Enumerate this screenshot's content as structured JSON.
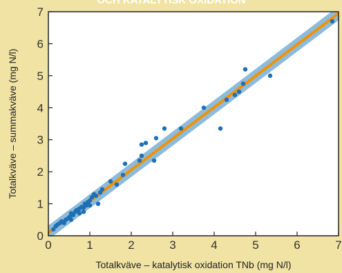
{
  "chart_data": {
    "type": "scatter",
    "title_fragment": "OCH KATALYTISK OXIDATION",
    "xlabel": "Totalkväve – katalytisk oxidation TNb (mg N/l)",
    "ylabel": "Totalkväve – summakväve (mg N/l)",
    "xlim": [
      0,
      7
    ],
    "ylim": [
      0,
      7
    ],
    "xticks": [
      "0",
      "1",
      "2",
      "3",
      "4",
      "5",
      "6",
      "7"
    ],
    "yticks": [
      "0",
      "1",
      "2",
      "3",
      "4",
      "5",
      "6",
      "7"
    ],
    "grid": false,
    "regression_line": {
      "x": [
        0,
        7
      ],
      "y": [
        0.1,
        6.95
      ]
    },
    "confidence_band_halfwidth": 0.22,
    "points": [
      [
        0.12,
        0.2
      ],
      [
        0.18,
        0.3
      ],
      [
        0.22,
        0.35
      ],
      [
        0.28,
        0.4
      ],
      [
        0.32,
        0.45
      ],
      [
        0.38,
        0.4
      ],
      [
        0.42,
        0.5
      ],
      [
        0.48,
        0.55
      ],
      [
        0.52,
        0.6
      ],
      [
        0.55,
        0.7
      ],
      [
        0.6,
        0.65
      ],
      [
        0.65,
        0.75
      ],
      [
        0.68,
        0.8
      ],
      [
        0.72,
        0.78
      ],
      [
        0.75,
        0.85
      ],
      [
        0.8,
        0.9
      ],
      [
        0.85,
        0.88
      ],
      [
        0.88,
        1.0
      ],
      [
        0.92,
        0.95
      ],
      [
        0.95,
        1.05
      ],
      [
        1.0,
        1.1
      ],
      [
        1.05,
        1.2
      ],
      [
        1.1,
        1.3
      ],
      [
        1.15,
        1.25
      ],
      [
        1.2,
        1.0
      ],
      [
        1.25,
        1.35
      ],
      [
        0.55,
        0.5
      ],
      [
        0.85,
        0.75
      ],
      [
        0.75,
        0.7
      ],
      [
        1.0,
        0.95
      ],
      [
        1.3,
        1.45
      ],
      [
        1.5,
        1.7
      ],
      [
        1.65,
        1.6
      ],
      [
        1.8,
        1.9
      ],
      [
        1.85,
        2.25
      ],
      [
        2.2,
        2.35
      ],
      [
        2.25,
        2.5
      ],
      [
        2.25,
        2.85
      ],
      [
        2.35,
        2.9
      ],
      [
        2.55,
        2.35
      ],
      [
        2.6,
        3.05
      ],
      [
        2.8,
        3.35
      ],
      [
        3.2,
        3.35
      ],
      [
        3.75,
        4.0
      ],
      [
        4.15,
        3.35
      ],
      [
        4.3,
        4.25
      ],
      [
        4.5,
        4.4
      ],
      [
        4.6,
        4.5
      ],
      [
        4.7,
        4.75
      ],
      [
        4.75,
        5.2
      ],
      [
        5.35,
        5.0
      ],
      [
        6.85,
        6.7
      ]
    ],
    "colors": {
      "background": "#f1e3a3",
      "plot_area": "#ffffff",
      "band": "#8dbbdc",
      "line": "#f39200",
      "points": "#1e6fb4",
      "axis": "#222222"
    }
  }
}
